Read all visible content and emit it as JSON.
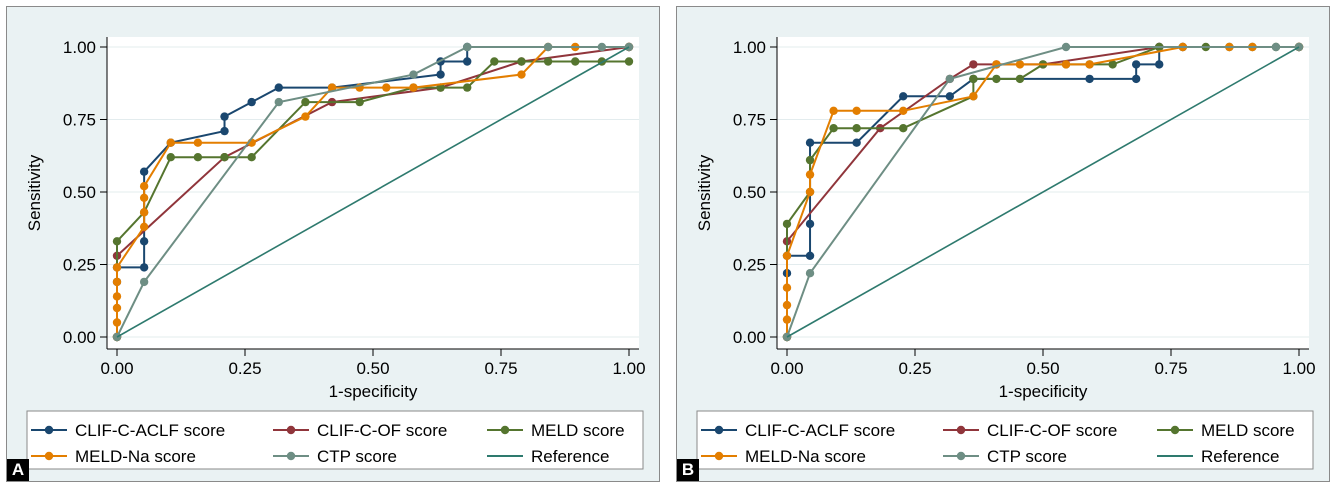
{
  "colors": {
    "background": "#eaf2f3",
    "plot_bg": "#ffffff",
    "clif_c_aclf": "#1a476f",
    "clif_c_of": "#90353b",
    "meld": "#55752f",
    "meld_na": "#e37e00",
    "ctp": "#6e8e84",
    "reference": "#2e7a6e"
  },
  "chart_data": [
    {
      "type": "line",
      "panel_label": "A",
      "xlabel": "1-specificity",
      "ylabel": "Sensitivity",
      "xlim": [
        0,
        1
      ],
      "ylim": [
        0,
        1
      ],
      "xticks": [
        "0.00",
        "0.25",
        "0.50",
        "0.75",
        "1.00"
      ],
      "yticks": [
        "0.00",
        "0.25",
        "0.50",
        "0.75",
        "1.00"
      ],
      "grid": "horizontal",
      "legend_position": "bottom",
      "series": [
        {
          "name": "CLIF-C-ACLF score",
          "color": "#1a476f",
          "points": [
            [
              0,
              0
            ],
            [
              0,
              0.19
            ],
            [
              0,
              0.24
            ],
            [
              0.053,
              0.24
            ],
            [
              0.053,
              0.33
            ],
            [
              0.053,
              0.57
            ],
            [
              0.105,
              0.67
            ],
            [
              0.21,
              0.71
            ],
            [
              0.21,
              0.76
            ],
            [
              0.263,
              0.81
            ],
            [
              0.316,
              0.86
            ],
            [
              0.42,
              0.86
            ],
            [
              0.632,
              0.905
            ],
            [
              0.632,
              0.95
            ],
            [
              0.684,
              0.95
            ],
            [
              0.684,
              1.0
            ],
            [
              1.0,
              1.0
            ]
          ]
        },
        {
          "name": "CLIF-C-OF score",
          "color": "#90353b",
          "points": [
            [
              0,
              0
            ],
            [
              0,
              0.28
            ],
            [
              0.21,
              0.62
            ],
            [
              0.42,
              0.81
            ],
            [
              0.632,
              0.86
            ],
            [
              0.79,
              0.95
            ],
            [
              1.0,
              1.0
            ]
          ]
        },
        {
          "name": "MELD score",
          "color": "#55752f",
          "points": [
            [
              0,
              0
            ],
            [
              0,
              0.33
            ],
            [
              0.053,
              0.43
            ],
            [
              0.105,
              0.62
            ],
            [
              0.158,
              0.62
            ],
            [
              0.21,
              0.62
            ],
            [
              0.263,
              0.62
            ],
            [
              0.368,
              0.81
            ],
            [
              0.474,
              0.81
            ],
            [
              0.579,
              0.86
            ],
            [
              0.632,
              0.86
            ],
            [
              0.684,
              0.86
            ],
            [
              0.737,
              0.95
            ],
            [
              0.79,
              0.95
            ],
            [
              0.842,
              0.95
            ],
            [
              0.895,
              0.95
            ],
            [
              0.947,
              0.95
            ],
            [
              1.0,
              0.95
            ]
          ]
        },
        {
          "name": "MELD-Na score",
          "color": "#e37e00",
          "points": [
            [
              0,
              0
            ],
            [
              0,
              0.05
            ],
            [
              0,
              0.1
            ],
            [
              0,
              0.14
            ],
            [
              0,
              0.19
            ],
            [
              0,
              0.24
            ],
            [
              0.053,
              0.38
            ],
            [
              0.053,
              0.43
            ],
            [
              0.053,
              0.48
            ],
            [
              0.053,
              0.52
            ],
            [
              0.105,
              0.67
            ],
            [
              0.158,
              0.67
            ],
            [
              0.263,
              0.67
            ],
            [
              0.368,
              0.76
            ],
            [
              0.42,
              0.86
            ],
            [
              0.474,
              0.86
            ],
            [
              0.526,
              0.86
            ],
            [
              0.579,
              0.86
            ],
            [
              0.79,
              0.905
            ],
            [
              0.842,
              1.0
            ],
            [
              0.895,
              1.0
            ],
            [
              1.0,
              1.0
            ]
          ]
        },
        {
          "name": "CTP score",
          "color": "#6e8e84",
          "points": [
            [
              0,
              0
            ],
            [
              0.053,
              0.19
            ],
            [
              0.316,
              0.81
            ],
            [
              0.579,
              0.905
            ],
            [
              0.684,
              1.0
            ],
            [
              0.842,
              1.0
            ],
            [
              0.947,
              1.0
            ],
            [
              1.0,
              1.0
            ]
          ]
        },
        {
          "name": "Reference",
          "color": "#2e7a6e",
          "markers": false,
          "points": [
            [
              0,
              0
            ],
            [
              1,
              1
            ]
          ]
        }
      ],
      "legend": [
        "CLIF-C-ACLF score",
        "CLIF-C-OF score",
        "MELD score",
        "MELD-Na score",
        "CTP score",
        "Reference"
      ]
    },
    {
      "type": "line",
      "panel_label": "B",
      "xlabel": "1-specificity",
      "ylabel": "Sensitivity",
      "xlim": [
        0,
        1
      ],
      "ylim": [
        0,
        1
      ],
      "xticks": [
        "0.00",
        "0.25",
        "0.50",
        "0.75",
        "1.00"
      ],
      "yticks": [
        "0.00",
        "0.25",
        "0.50",
        "0.75",
        "1.00"
      ],
      "grid": "horizontal",
      "legend_position": "bottom",
      "series": [
        {
          "name": "CLIF-C-ACLF score",
          "color": "#1a476f",
          "points": [
            [
              0,
              0
            ],
            [
              0,
              0.22
            ],
            [
              0,
              0.28
            ],
            [
              0.045,
              0.28
            ],
            [
              0.045,
              0.39
            ],
            [
              0.045,
              0.67
            ],
            [
              0.136,
              0.67
            ],
            [
              0.227,
              0.83
            ],
            [
              0.318,
              0.83
            ],
            [
              0.364,
              0.89
            ],
            [
              0.591,
              0.89
            ],
            [
              0.682,
              0.89
            ],
            [
              0.682,
              0.94
            ],
            [
              0.727,
              0.94
            ],
            [
              0.727,
              1.0
            ],
            [
              1.0,
              1.0
            ]
          ]
        },
        {
          "name": "CLIF-C-OF score",
          "color": "#90353b",
          "points": [
            [
              0,
              0
            ],
            [
              0,
              0.33
            ],
            [
              0.182,
              0.72
            ],
            [
              0.318,
              0.89
            ],
            [
              0.364,
              0.94
            ],
            [
              0.409,
              0.94
            ],
            [
              0.5,
              0.94
            ],
            [
              0.727,
              1.0
            ],
            [
              0.773,
              1.0
            ],
            [
              1.0,
              1.0
            ]
          ]
        },
        {
          "name": "MELD score",
          "color": "#55752f",
          "points": [
            [
              0,
              0
            ],
            [
              0,
              0.39
            ],
            [
              0.045,
              0.5
            ],
            [
              0.045,
              0.61
            ],
            [
              0.091,
              0.72
            ],
            [
              0.136,
              0.72
            ],
            [
              0.227,
              0.72
            ],
            [
              0.364,
              0.83
            ],
            [
              0.364,
              0.89
            ],
            [
              0.409,
              0.89
            ],
            [
              0.455,
              0.89
            ],
            [
              0.5,
              0.94
            ],
            [
              0.545,
              0.94
            ],
            [
              0.591,
              0.94
            ],
            [
              0.636,
              0.94
            ],
            [
              0.727,
              1.0
            ],
            [
              0.773,
              1.0
            ],
            [
              0.818,
              1.0
            ],
            [
              0.864,
              1.0
            ],
            [
              0.909,
              1.0
            ],
            [
              0.955,
              1.0
            ],
            [
              1.0,
              1.0
            ]
          ]
        },
        {
          "name": "MELD-Na score",
          "color": "#e37e00",
          "points": [
            [
              0,
              0
            ],
            [
              0,
              0.06
            ],
            [
              0,
              0.11
            ],
            [
              0,
              0.17
            ],
            [
              0,
              0.28
            ],
            [
              0.045,
              0.5
            ],
            [
              0.045,
              0.56
            ],
            [
              0.091,
              0.78
            ],
            [
              0.136,
              0.78
            ],
            [
              0.227,
              0.78
            ],
            [
              0.364,
              0.83
            ],
            [
              0.409,
              0.94
            ],
            [
              0.455,
              0.94
            ],
            [
              0.545,
              0.94
            ],
            [
              0.591,
              0.94
            ],
            [
              0.773,
              1.0
            ],
            [
              0.864,
              1.0
            ],
            [
              0.909,
              1.0
            ],
            [
              1.0,
              1.0
            ]
          ]
        },
        {
          "name": "CTP score",
          "color": "#6e8e84",
          "points": [
            [
              0,
              0
            ],
            [
              0.045,
              0.22
            ],
            [
              0.318,
              0.89
            ],
            [
              0.545,
              1.0
            ],
            [
              0.955,
              1.0
            ],
            [
              1.0,
              1.0
            ]
          ]
        },
        {
          "name": "Reference",
          "color": "#2e7a6e",
          "markers": false,
          "points": [
            [
              0,
              0
            ],
            [
              1,
              1
            ]
          ]
        }
      ],
      "legend": [
        "CLIF-C-ACLF score",
        "CLIF-C-OF score",
        "MELD score",
        "MELD-Na score",
        "CTP score",
        "Reference"
      ]
    }
  ]
}
